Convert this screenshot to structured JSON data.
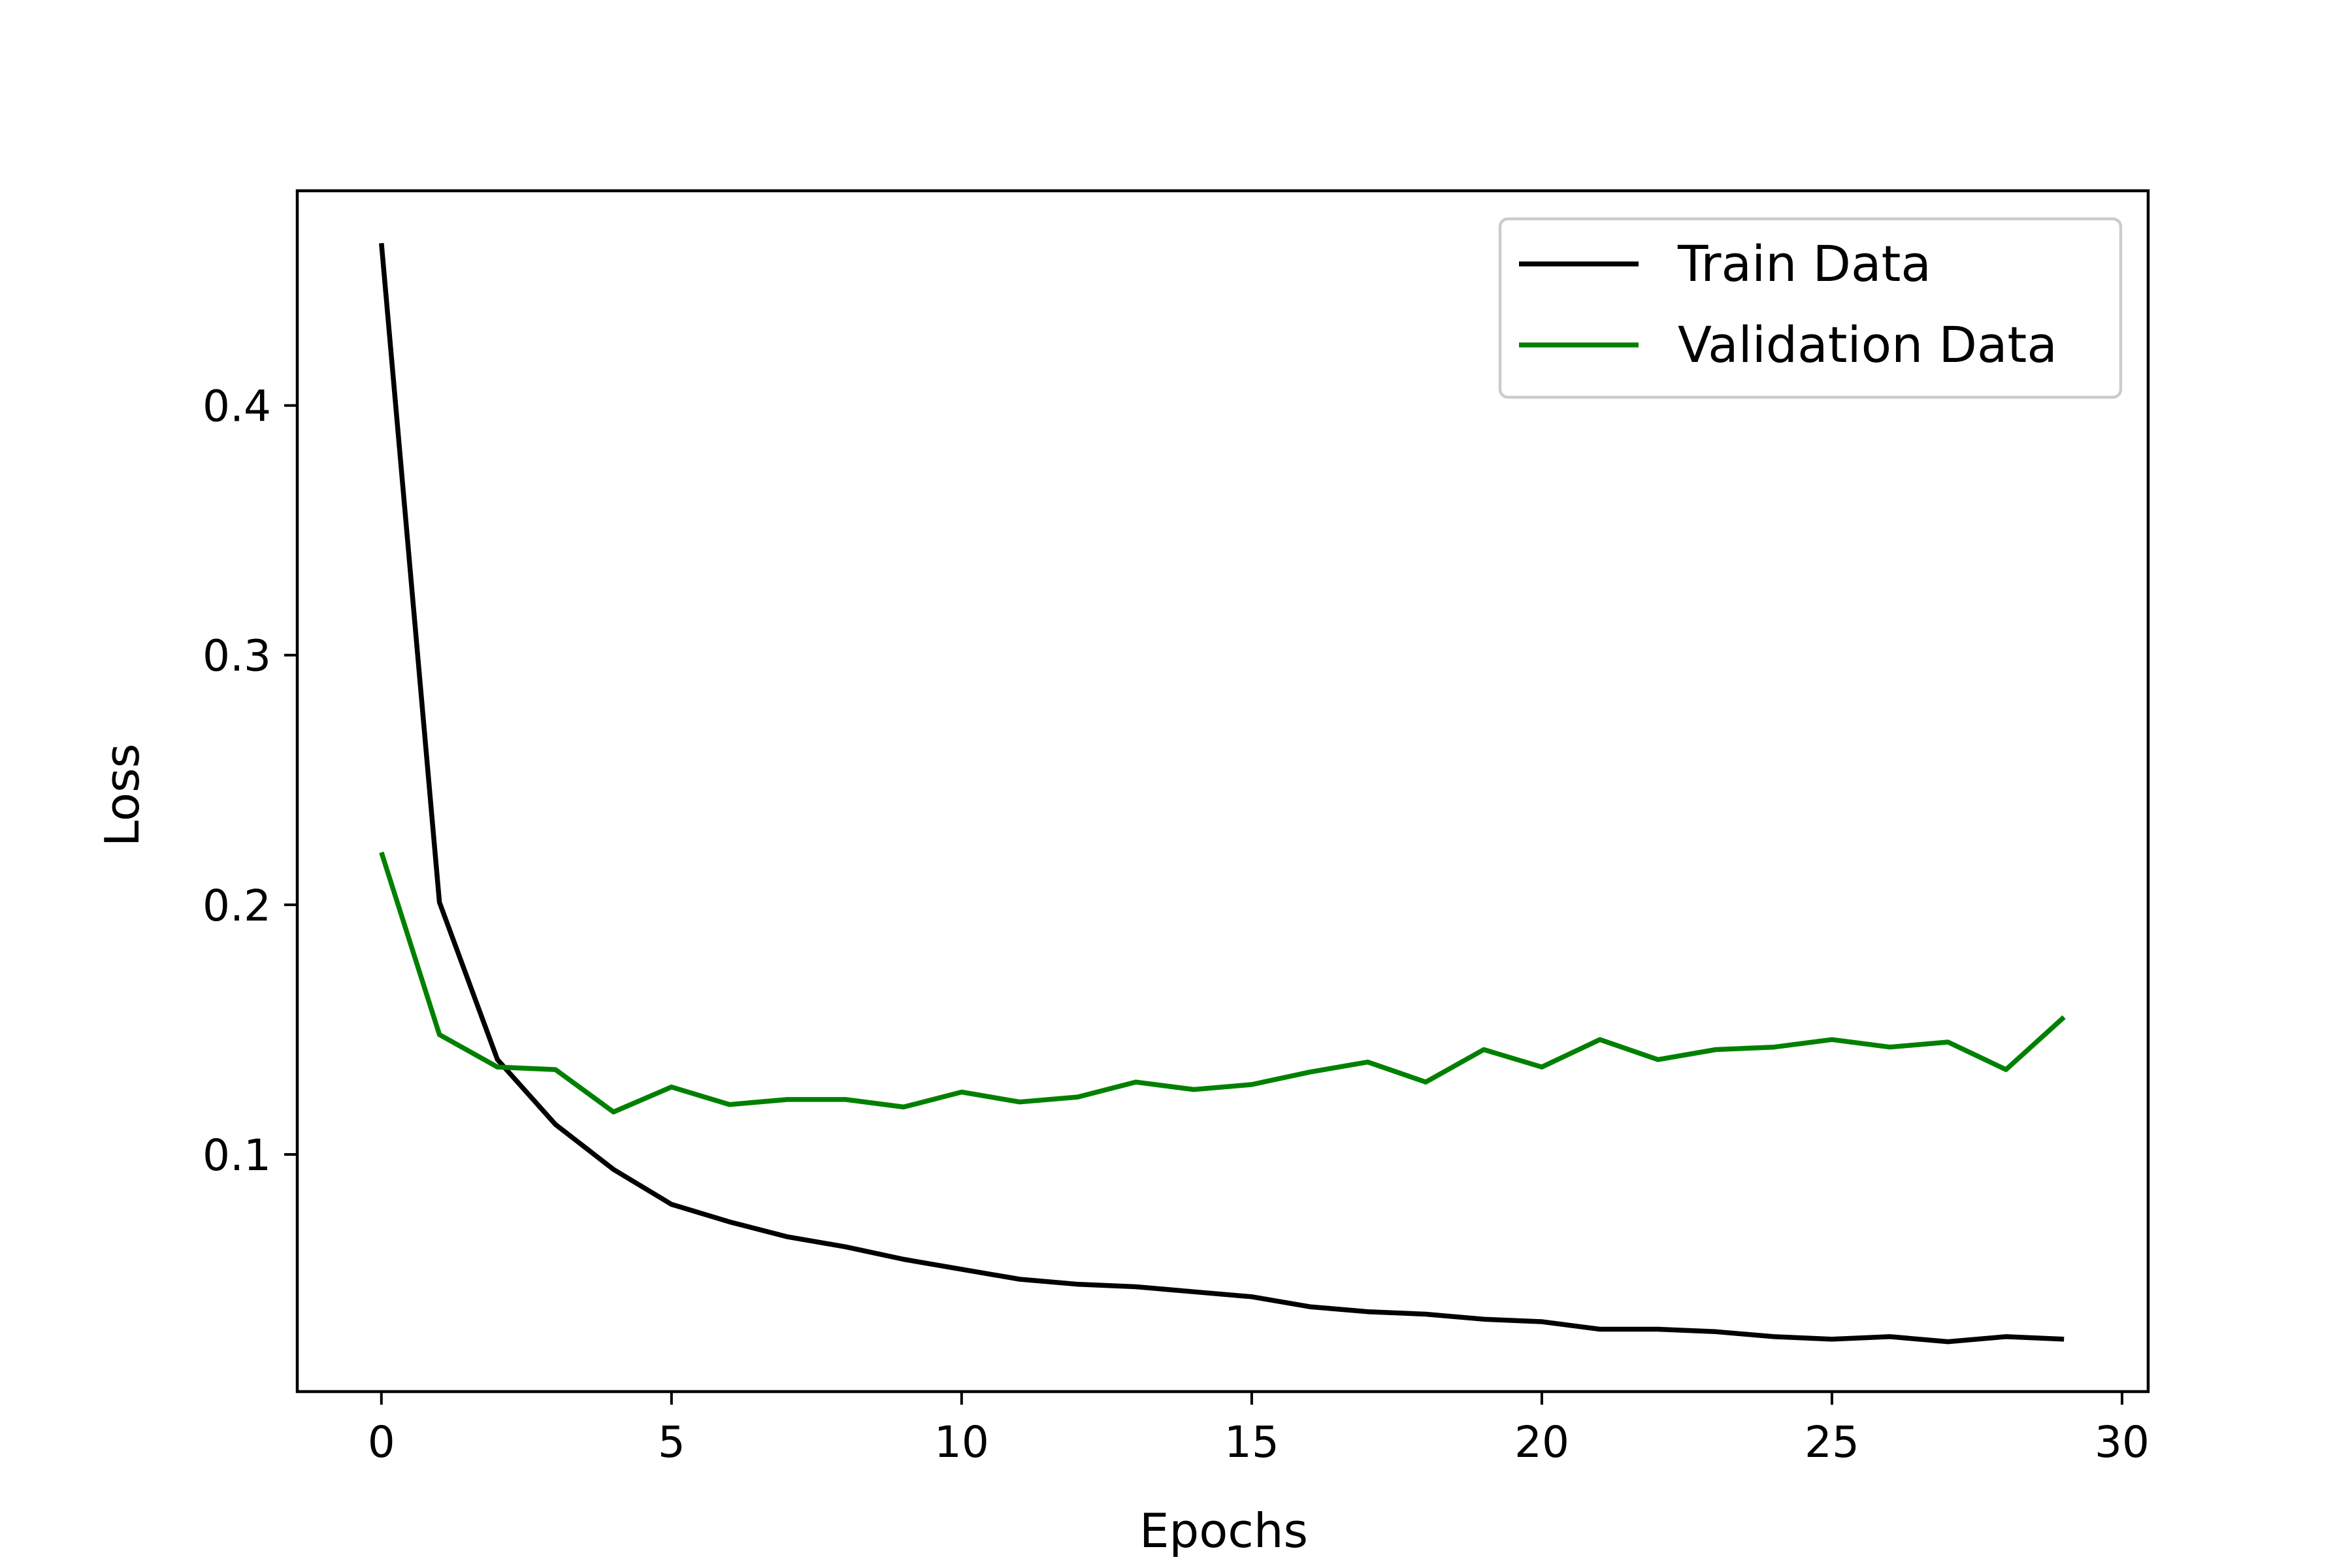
{
  "chart_data": {
    "type": "line",
    "title": "",
    "xlabel": "Epochs",
    "ylabel": "Loss",
    "xlim": [
      -1.45,
      30.45
    ],
    "ylim": [
      0.005,
      0.486
    ],
    "xticks": [
      0,
      5,
      10,
      15,
      20,
      25,
      30
    ],
    "xtick_labels": [
      "0",
      "5",
      "10",
      "15",
      "20",
      "25",
      "30"
    ],
    "yticks": [
      0.1,
      0.2,
      0.3,
      0.4
    ],
    "ytick_labels": [
      "0.1",
      "0.2",
      "0.3",
      "0.4"
    ],
    "grid": false,
    "legend_position": "top-right",
    "x": [
      0,
      1,
      2,
      3,
      4,
      5,
      6,
      7,
      8,
      9,
      10,
      11,
      12,
      13,
      14,
      15,
      16,
      17,
      18,
      19,
      20,
      21,
      22,
      23,
      24,
      25,
      26,
      27,
      28,
      29
    ],
    "series": [
      {
        "name": "Train Data",
        "color": "#000000",
        "values": [
          0.465,
          0.201,
          0.138,
          0.112,
          0.094,
          0.08,
          0.073,
          0.067,
          0.063,
          0.058,
          0.054,
          0.05,
          0.048,
          0.047,
          0.045,
          0.043,
          0.039,
          0.037,
          0.036,
          0.034,
          0.033,
          0.03,
          0.03,
          0.029,
          0.027,
          0.026,
          0.027,
          0.025,
          0.027,
          0.026
        ]
      },
      {
        "name": "Validation Data",
        "color": "#008000",
        "values": [
          0.221,
          0.148,
          0.135,
          0.134,
          0.117,
          0.127,
          0.12,
          0.122,
          0.122,
          0.119,
          0.125,
          0.121,
          0.123,
          0.129,
          0.126,
          0.128,
          0.133,
          0.137,
          0.129,
          0.142,
          0.135,
          0.146,
          0.138,
          0.142,
          0.143,
          0.146,
          0.143,
          0.145,
          0.134,
          0.155
        ]
      }
    ]
  }
}
